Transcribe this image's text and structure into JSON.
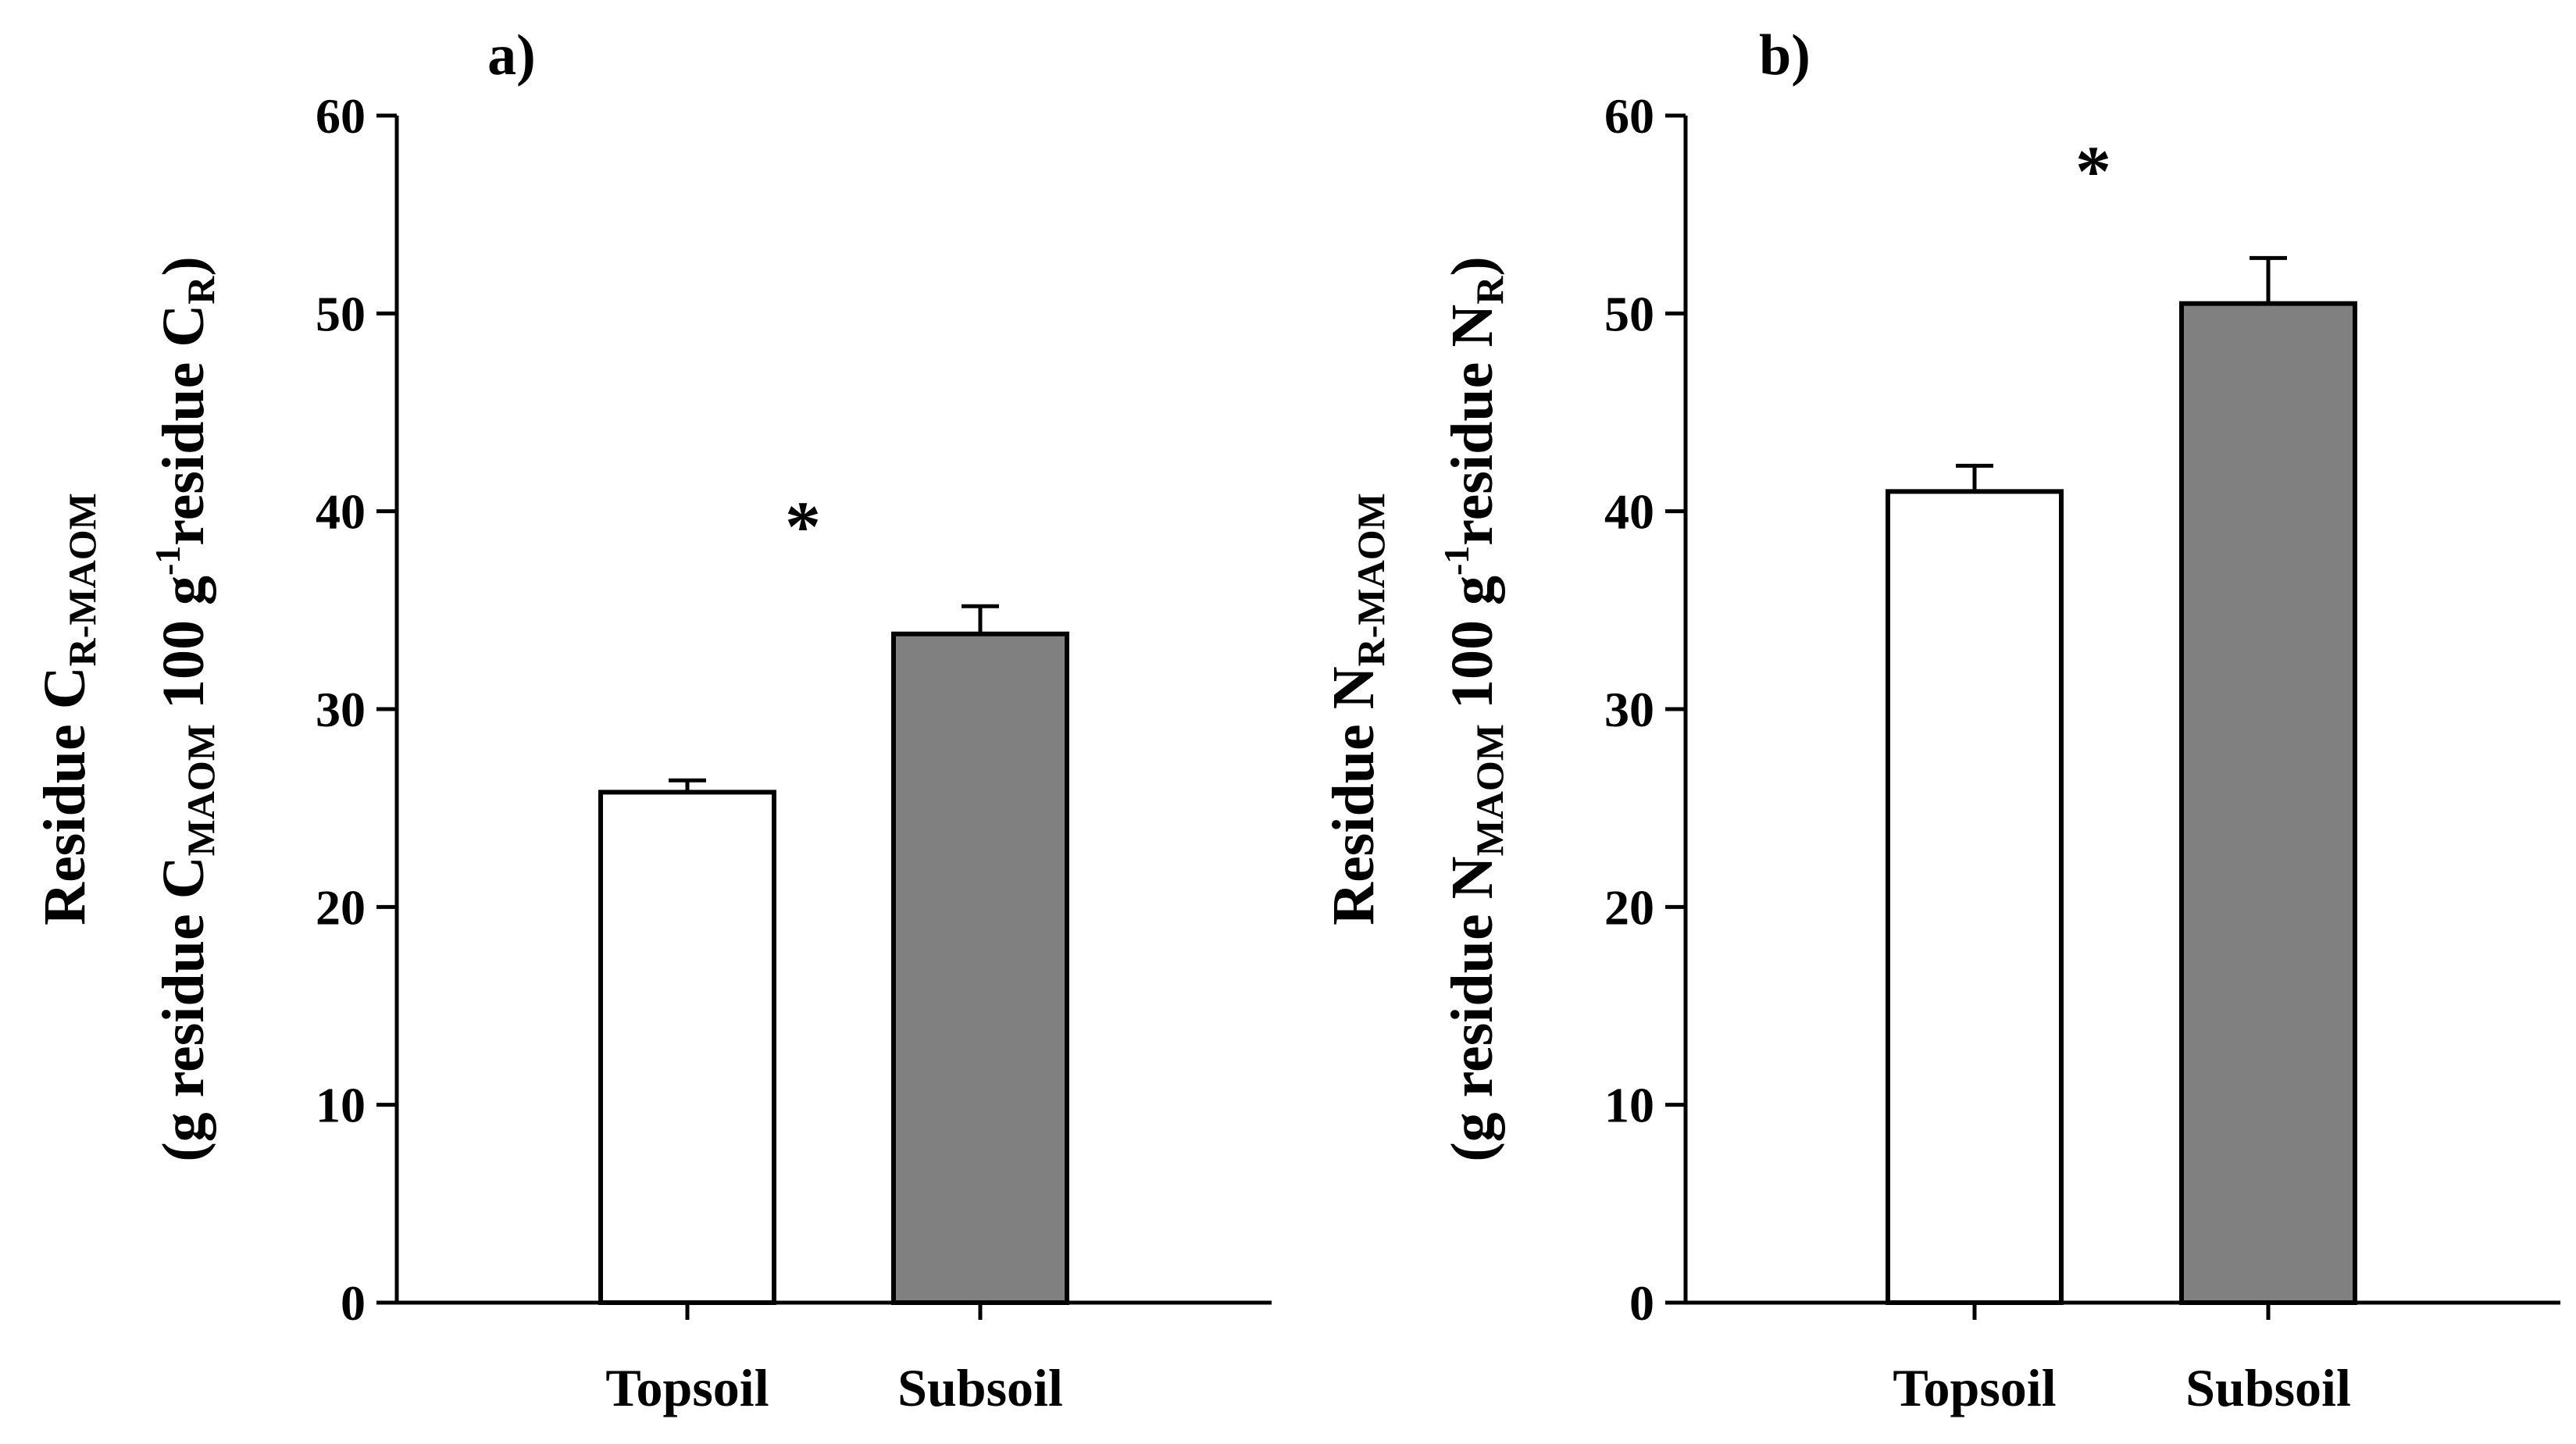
{
  "chart_data": [
    {
      "type": "bar",
      "panel_label": "a)",
      "title": "",
      "categories": [
        "Topsoil",
        "Subsoil"
      ],
      "values": [
        25.8,
        33.8
      ],
      "errors": [
        0.6,
        1.4
      ],
      "bar_colors": [
        "#ffffff",
        "#808080"
      ],
      "ylim": [
        0,
        60
      ],
      "yticks": [
        "0",
        "10",
        "20",
        "30",
        "40",
        "50",
        "60"
      ],
      "xlabel": "",
      "ylabel": {
        "line1": {
          "pre": "Residue C",
          "sub": "R-MAOM"
        },
        "line2": {
          "pre": "(g residue C",
          "sub1": "MAOM",
          "mid": " 100 g",
          "sup": "-1",
          "post": "residue C",
          "sub2": "R",
          "end": ")"
        }
      },
      "annotation": "*"
    },
    {
      "type": "bar",
      "panel_label": "b)",
      "title": "",
      "categories": [
        "Topsoil",
        "Subsoil"
      ],
      "values": [
        41.0,
        50.5
      ],
      "errors": [
        1.3,
        2.3
      ],
      "bar_colors": [
        "#ffffff",
        "#808080"
      ],
      "ylim": [
        0,
        60
      ],
      "yticks": [
        "0",
        "10",
        "20",
        "30",
        "40",
        "50",
        "60"
      ],
      "xlabel": "",
      "ylabel": {
        "line1": {
          "pre": "Residue N",
          "sub": "R-MAOM"
        },
        "line2": {
          "pre": "(g residue N",
          "sub1": "MAOM",
          "mid": " 100 g",
          "sup": "-1",
          "post": "residue N",
          "sub2": "R",
          "end": ")"
        }
      },
      "annotation": "*"
    }
  ]
}
